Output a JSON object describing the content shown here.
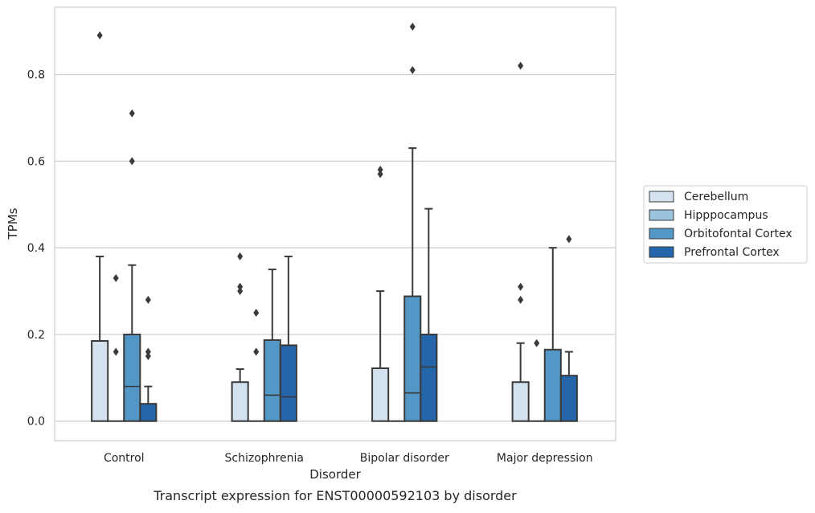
{
  "chart_data": {
    "type": "boxplot",
    "title": "",
    "caption": "Transcript expression for ENST00000592103 by disorder",
    "xlabel": "Disorder",
    "ylabel": "TPMs",
    "ylim": [
      -0.045,
      0.955
    ],
    "yticks": [
      "0.0",
      "0.2",
      "0.4",
      "0.6",
      "0.8"
    ],
    "grid": "horizontal",
    "legend_position": "right",
    "categories": [
      "Control",
      "Schizophrenia",
      "Bipolar disorder",
      "Major depression"
    ],
    "series": [
      {
        "name": "Cerebellum",
        "color": "#d4e1ef",
        "boxes": [
          {
            "q1": 0.0,
            "median": 0.0,
            "q3": 0.185,
            "whisker_low": 0.0,
            "whisker_high": 0.38,
            "outliers": [
              0.89
            ]
          },
          {
            "q1": 0.0,
            "median": 0.0,
            "q3": 0.09,
            "whisker_low": 0.0,
            "whisker_high": 0.12,
            "outliers": [
              0.38,
              0.31,
              0.3
            ]
          },
          {
            "q1": 0.0,
            "median": 0.0,
            "q3": 0.122,
            "whisker_low": 0.0,
            "whisker_high": 0.3,
            "outliers": [
              0.58,
              0.57
            ]
          },
          {
            "q1": 0.0,
            "median": 0.0,
            "q3": 0.09,
            "whisker_low": 0.0,
            "whisker_high": 0.18,
            "outliers": [
              0.82,
              0.31,
              0.28
            ]
          }
        ]
      },
      {
        "name": "Hipppocampus",
        "color": "#9ac4de",
        "boxes": [
          {
            "q1": 0.0,
            "median": 0.0,
            "q3": 0.0,
            "whisker_low": 0.0,
            "whisker_high": 0.0,
            "outliers": [
              0.33,
              0.16
            ]
          },
          {
            "q1": 0.0,
            "median": 0.0,
            "q3": 0.0,
            "whisker_low": 0.0,
            "whisker_high": 0.0,
            "outliers": [
              0.25,
              0.16
            ]
          },
          {
            "q1": 0.0,
            "median": 0.0,
            "q3": 0.0,
            "whisker_low": 0.0,
            "whisker_high": 0.0,
            "outliers": []
          },
          {
            "q1": 0.0,
            "median": 0.0,
            "q3": 0.0,
            "whisker_low": 0.0,
            "whisker_high": 0.0,
            "outliers": [
              0.18
            ]
          }
        ]
      },
      {
        "name": "Orbitofontal Cortex",
        "color": "#5297c6",
        "boxes": [
          {
            "q1": 0.0,
            "median": 0.08,
            "q3": 0.2,
            "whisker_low": 0.0,
            "whisker_high": 0.36,
            "outliers": [
              0.71,
              0.6
            ]
          },
          {
            "q1": 0.0,
            "median": 0.06,
            "q3": 0.187,
            "whisker_low": 0.0,
            "whisker_high": 0.35,
            "outliers": []
          },
          {
            "q1": 0.0,
            "median": 0.065,
            "q3": 0.288,
            "whisker_low": 0.0,
            "whisker_high": 0.63,
            "outliers": [
              0.91,
              0.81
            ]
          },
          {
            "q1": 0.0,
            "median": 0.0,
            "q3": 0.165,
            "whisker_low": 0.0,
            "whisker_high": 0.4,
            "outliers": []
          }
        ]
      },
      {
        "name": "Prefrontal Cortex",
        "color": "#2565a9",
        "boxes": [
          {
            "q1": 0.0,
            "median": 0.0,
            "q3": 0.04,
            "whisker_low": 0.0,
            "whisker_high": 0.08,
            "outliers": [
              0.28,
              0.16,
              0.15
            ]
          },
          {
            "q1": 0.0,
            "median": 0.056,
            "q3": 0.175,
            "whisker_low": 0.0,
            "whisker_high": 0.38,
            "outliers": []
          },
          {
            "q1": 0.0,
            "median": 0.125,
            "q3": 0.2,
            "whisker_low": 0.0,
            "whisker_high": 0.49,
            "outliers": []
          },
          {
            "q1": 0.0,
            "median": 0.0,
            "q3": 0.105,
            "whisker_low": 0.0,
            "whisker_high": 0.16,
            "outliers": [
              0.42
            ]
          }
        ]
      }
    ]
  }
}
